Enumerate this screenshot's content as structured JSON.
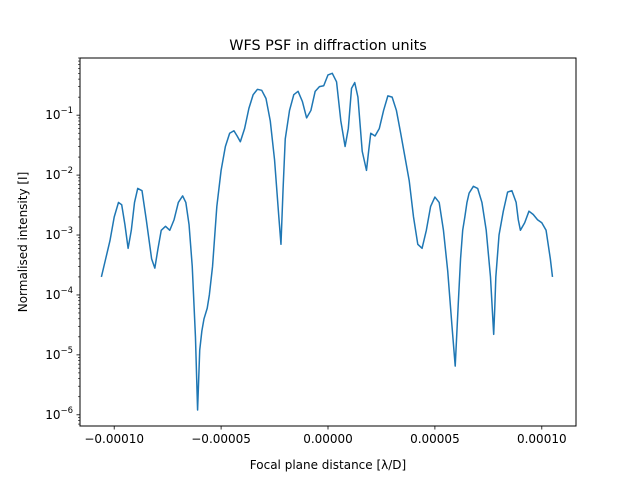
{
  "chart_data": {
    "type": "line",
    "title": "WFS PSF in diffraction units",
    "xlabel": "Focal plane distance [λ/D]",
    "ylabel": "Normalised intensity [I]",
    "xlim": [
      -0.000116,
      0.000116
    ],
    "ylim": [
      6.5e-07,
      0.9
    ],
    "yscale": "log",
    "grid": false,
    "xticks": [
      -0.0001,
      -5e-05,
      0.0,
      5e-05,
      0.0001
    ],
    "xtick_labels": [
      "−0.00010",
      "−0.00005",
      "0.00000",
      "0.00005",
      "0.00010"
    ],
    "yticks": [
      1e-06,
      1e-05,
      0.0001,
      0.001,
      0.01,
      0.1
    ],
    "ytick_labels": [
      {
        "base": "10",
        "exp": "−6"
      },
      {
        "base": "10",
        "exp": "−5"
      },
      {
        "base": "10",
        "exp": "−4"
      },
      {
        "base": "10",
        "exp": "−3"
      },
      {
        "base": "10",
        "exp": "−2"
      },
      {
        "base": "10",
        "exp": "−1"
      }
    ],
    "series": [
      {
        "color": "#1f77b4",
        "x": [
          -0.000106,
          -0.000104,
          -0.000102,
          -0.0001,
          -9.8e-05,
          -9.65e-05,
          -9.5e-05,
          -9.35e-05,
          -9.2e-05,
          -9.05e-05,
          -8.9e-05,
          -8.7e-05,
          -8.5e-05,
          -8.25e-05,
          -8.1e-05,
          -7.95e-05,
          -7.8e-05,
          -7.6e-05,
          -7.4e-05,
          -7.2e-05,
          -7e-05,
          -6.8e-05,
          -6.65e-05,
          -6.5e-05,
          -6.35e-05,
          -6.2e-05,
          -6.1e-05,
          -6e-05,
          -5.9e-05,
          -5.8e-05,
          -5.65e-05,
          -5.55e-05,
          -5.4e-05,
          -5.2e-05,
          -5e-05,
          -4.8e-05,
          -4.6e-05,
          -4.4e-05,
          -4.25e-05,
          -4.1e-05,
          -3.9e-05,
          -3.7e-05,
          -3.5e-05,
          -3.3e-05,
          -3.1e-05,
          -2.9e-05,
          -2.7e-05,
          -2.5e-05,
          -2.3e-05,
          -2.2e-05,
          -2.1e-05,
          -2e-05,
          -1.8e-05,
          -1.6e-05,
          -1.4e-05,
          -1.2e-05,
          -1e-05,
          -8e-06,
          -6e-06,
          -4e-06,
          -2e-06,
          0.0,
          2e-06,
          4e-06,
          6e-06,
          8e-06,
          9.5e-06,
          1.1e-05,
          1.25e-05,
          1.4e-05,
          1.6e-05,
          1.8e-05,
          1.9e-05,
          2e-05,
          2.2e-05,
          2.4e-05,
          2.6e-05,
          2.8e-05,
          3e-05,
          3.2e-05,
          3.4e-05,
          3.6e-05,
          3.8e-05,
          4e-05,
          4.2e-05,
          4.4e-05,
          4.6e-05,
          4.8e-05,
          5e-05,
          5.2e-05,
          5.4e-05,
          5.6e-05,
          5.8e-05,
          5.95e-05,
          6.1e-05,
          6.2e-05,
          6.3e-05,
          6.4e-05,
          6.5e-05,
          6.6e-05,
          6.8e-05,
          7e-05,
          7.2e-05,
          7.4e-05,
          7.6e-05,
          7.75e-05,
          7.8e-05,
          7.85e-05,
          8e-05,
          8.2e-05,
          8.4e-05,
          8.6e-05,
          8.8e-05,
          8.9e-05,
          9e-05,
          9.2e-05,
          9.4e-05,
          9.6e-05,
          9.8e-05,
          0.0001,
          0.000102,
          0.000104,
          0.000105
        ],
        "y": [
          0.0002,
          0.0004,
          0.0008,
          0.002,
          0.0035,
          0.0032,
          0.0015,
          0.0006,
          0.0012,
          0.0035,
          0.006,
          0.0055,
          0.0018,
          0.0004,
          0.00028,
          0.0006,
          0.0012,
          0.0014,
          0.0012,
          0.0018,
          0.0035,
          0.0045,
          0.0035,
          0.0015,
          0.0003,
          2e-05,
          1.2e-06,
          1.2e-05,
          2.5e-05,
          4e-05,
          6e-05,
          0.0001,
          0.0003,
          0.003,
          0.012,
          0.03,
          0.05,
          0.055,
          0.045,
          0.036,
          0.06,
          0.13,
          0.22,
          0.27,
          0.26,
          0.19,
          0.08,
          0.018,
          0.002,
          0.0007,
          0.006,
          0.04,
          0.12,
          0.22,
          0.25,
          0.17,
          0.09,
          0.12,
          0.25,
          0.3,
          0.31,
          0.47,
          0.5,
          0.36,
          0.08,
          0.03,
          0.06,
          0.28,
          0.35,
          0.2,
          0.025,
          0.012,
          0.025,
          0.05,
          0.045,
          0.06,
          0.12,
          0.21,
          0.2,
          0.12,
          0.05,
          0.02,
          0.008,
          0.002,
          0.0007,
          0.0006,
          0.0012,
          0.003,
          0.0043,
          0.0035,
          0.0012,
          0.00025,
          3e-05,
          6.5e-06,
          8e-05,
          0.0004,
          0.0012,
          0.002,
          0.0035,
          0.005,
          0.0065,
          0.006,
          0.0035,
          0.0012,
          0.0002,
          2.2e-05,
          6e-05,
          0.0002,
          0.001,
          0.0025,
          0.0052,
          0.0055,
          0.0035,
          0.0018,
          0.0012,
          0.0016,
          0.0025,
          0.0022,
          0.0018,
          0.0016,
          0.0012,
          0.0004,
          0.0002
        ]
      }
    ]
  }
}
